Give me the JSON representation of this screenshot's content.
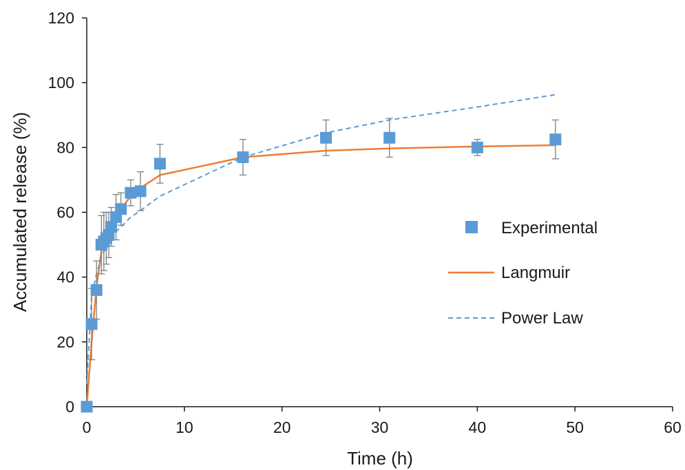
{
  "chart_data": {
    "type": "scatter",
    "xlabel": "Time (h)",
    "ylabel": "Accumulated release (%)",
    "xlim": [
      0,
      60
    ],
    "ylim": [
      0,
      120
    ],
    "xticks": [
      0,
      10,
      20,
      30,
      40,
      50,
      60
    ],
    "yticks": [
      0,
      20,
      40,
      60,
      80,
      100,
      120
    ],
    "grid": false,
    "legend_position": "right",
    "series": [
      {
        "name": "Experimental",
        "kind": "markers",
        "marker": "square",
        "color": "#5b9bd5",
        "error_bar_color": "#7f7f7f",
        "points": [
          {
            "x": 0,
            "y": 0,
            "err": 0
          },
          {
            "x": 0.5,
            "y": 25.5,
            "err": 11
          },
          {
            "x": 1,
            "y": 36,
            "err": 9
          },
          {
            "x": 1.5,
            "y": 50,
            "err": 9
          },
          {
            "x": 1.75,
            "y": 51,
            "err": 9
          },
          {
            "x": 2,
            "y": 52,
            "err": 8
          },
          {
            "x": 2.25,
            "y": 53,
            "err": 7
          },
          {
            "x": 2.5,
            "y": 55.5,
            "err": 6
          },
          {
            "x": 3,
            "y": 58.5,
            "err": 7
          },
          {
            "x": 3.5,
            "y": 61,
            "err": 5
          },
          {
            "x": 4.5,
            "y": 66,
            "err": 4
          },
          {
            "x": 5.5,
            "y": 66.5,
            "err": 6
          },
          {
            "x": 7.5,
            "y": 75,
            "err": 6
          },
          {
            "x": 16,
            "y": 77,
            "err": 5.5
          },
          {
            "x": 24.5,
            "y": 83,
            "err": 5.5
          },
          {
            "x": 31,
            "y": 83,
            "err": 6
          },
          {
            "x": 40,
            "y": 80,
            "err": 2.5
          },
          {
            "x": 48,
            "y": 82.5,
            "err": 6
          }
        ]
      },
      {
        "name": "Langmuir",
        "kind": "line",
        "style": "solid",
        "color": "#ed7d31",
        "x": [
          0,
          0.5,
          1,
          1.5,
          2,
          2.5,
          3,
          3.5,
          4.5,
          5.5,
          7.5,
          16,
          24.5,
          31,
          40,
          48
        ],
        "y": [
          0,
          20,
          37,
          48,
          52,
          55,
          58,
          61,
          65,
          67.5,
          71.5,
          77,
          79,
          79.7,
          80.3,
          80.7
        ]
      },
      {
        "name": "Power Law",
        "kind": "line",
        "style": "dashed",
        "color": "#5b9bd5",
        "x": [
          0,
          0.5,
          1,
          1.5,
          2,
          2.5,
          3,
          3.5,
          4.5,
          5.5,
          7.5,
          16,
          24.5,
          31,
          40,
          48
        ],
        "y": [
          7,
          34,
          41,
          46,
          49.5,
          51.5,
          54,
          55.5,
          58.5,
          60.5,
          65,
          77,
          84.5,
          88.5,
          92.5,
          96.3
        ]
      }
    ]
  }
}
